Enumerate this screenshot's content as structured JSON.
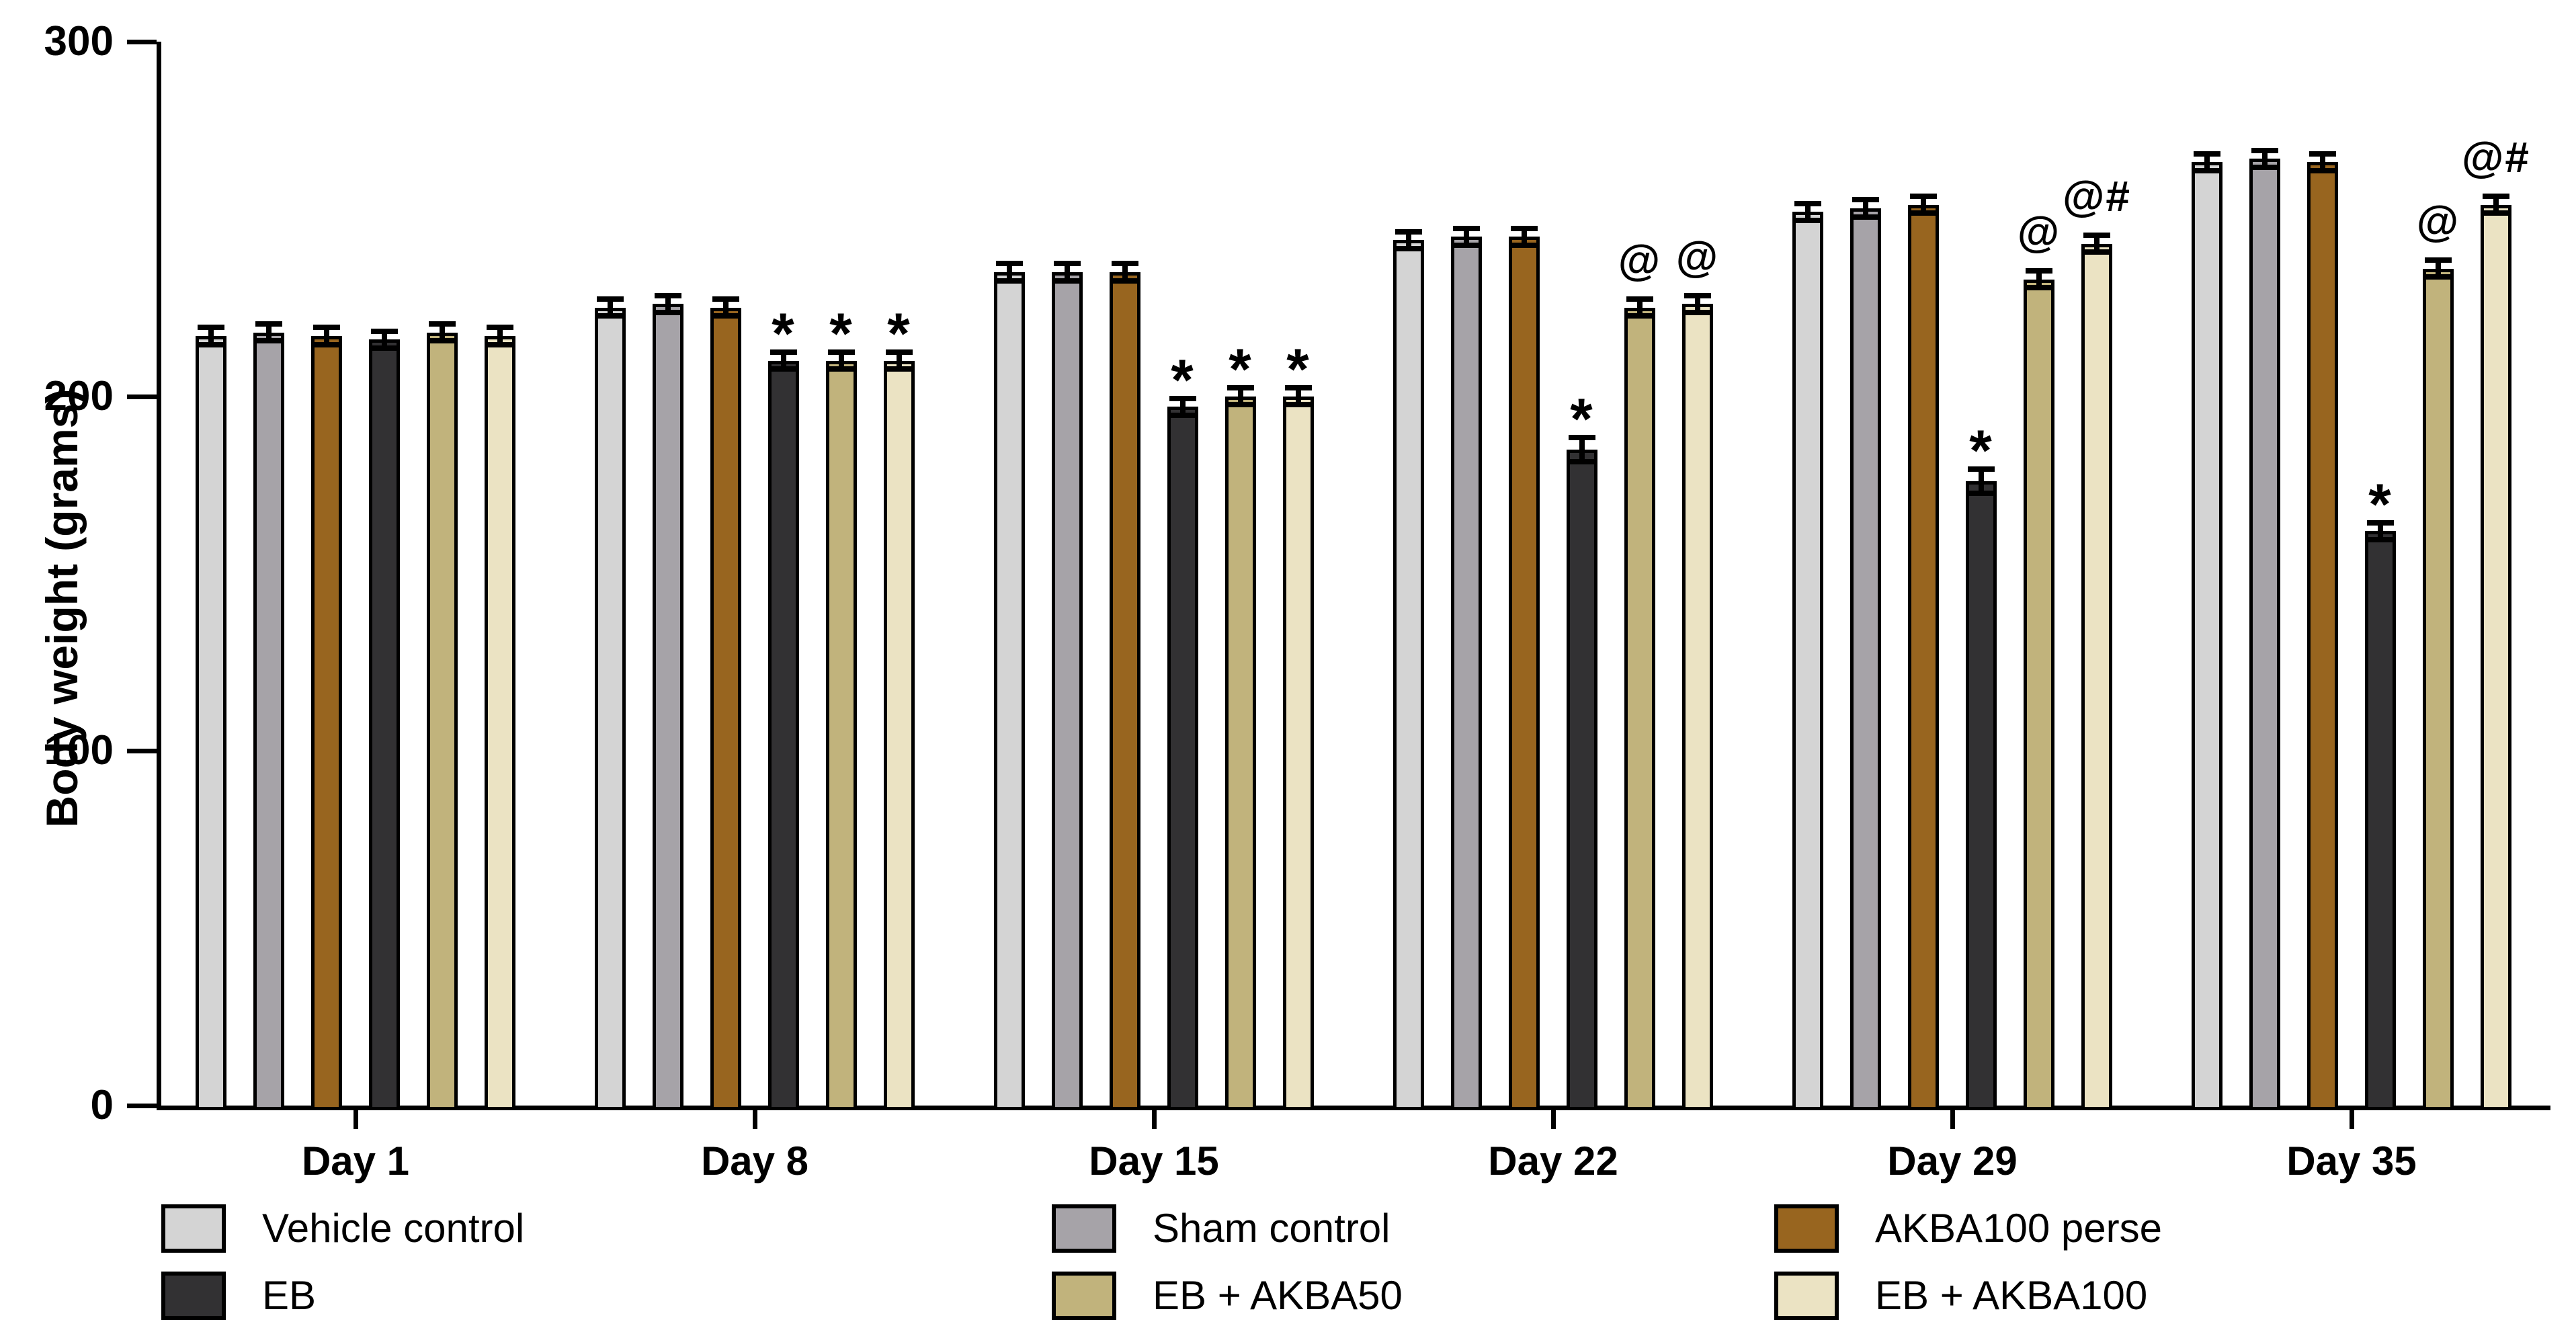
{
  "chart_data": {
    "type": "bar",
    "title": "",
    "ylabel": "Body weight (grams)",
    "xlabel": "",
    "ylim": [
      0,
      300
    ],
    "yticks": [
      0,
      100,
      200,
      300
    ],
    "grid": false,
    "legend_position": "bottom",
    "axis_color": "#000000",
    "bar_border_color": "#000000",
    "categories": [
      "Day 1",
      "Day 8",
      "Day 15",
      "Day 22",
      "Day 29",
      "Day 35"
    ],
    "series": [
      {
        "name": "Vehicle control",
        "color": "#d4d4d4",
        "values": [
          217,
          225,
          235,
          244,
          252,
          266
        ],
        "errors": [
          2,
          2,
          2,
          2,
          2,
          2
        ],
        "annotations": [
          "",
          "",
          "",
          "",
          "",
          ""
        ]
      },
      {
        "name": "Sham control",
        "color": "#a6a3a8",
        "values": [
          218,
          226,
          235,
          245,
          253,
          267
        ],
        "errors": [
          2,
          2,
          2,
          2,
          2,
          2
        ],
        "annotations": [
          "",
          "",
          "",
          "",
          "",
          ""
        ]
      },
      {
        "name": "AKBA100 perse",
        "color": "#98651f",
        "values": [
          217,
          225,
          235,
          245,
          254,
          266
        ],
        "errors": [
          2,
          2,
          2,
          2,
          2,
          2
        ],
        "annotations": [
          "",
          "",
          "",
          "",
          "",
          ""
        ]
      },
      {
        "name": "EB",
        "color": "#323133",
        "values": [
          216,
          210,
          197,
          185,
          176,
          162
        ],
        "errors": [
          2,
          2,
          2,
          3,
          3,
          2
        ],
        "annotations": [
          "",
          "*",
          "*",
          "*",
          "*",
          "*"
        ]
      },
      {
        "name": "EB + AKBA50",
        "color": "#c1b37c",
        "values": [
          218,
          210,
          200,
          225,
          233,
          236
        ],
        "errors": [
          2,
          2,
          2,
          2,
          2,
          2
        ],
        "annotations": [
          "",
          "*",
          "*",
          "@",
          "@",
          "@"
        ]
      },
      {
        "name": "EB + AKBA100",
        "color": "#ebe3c3",
        "values": [
          217,
          210,
          200,
          226,
          243,
          254
        ],
        "errors": [
          2,
          2,
          2,
          2,
          2,
          2
        ],
        "annotations": [
          "",
          "*",
          "*",
          "@",
          "@#",
          "@#"
        ]
      }
    ],
    "legend_columns": [
      [
        0,
        3
      ],
      [
        1,
        4
      ],
      [
        2,
        5
      ]
    ]
  }
}
